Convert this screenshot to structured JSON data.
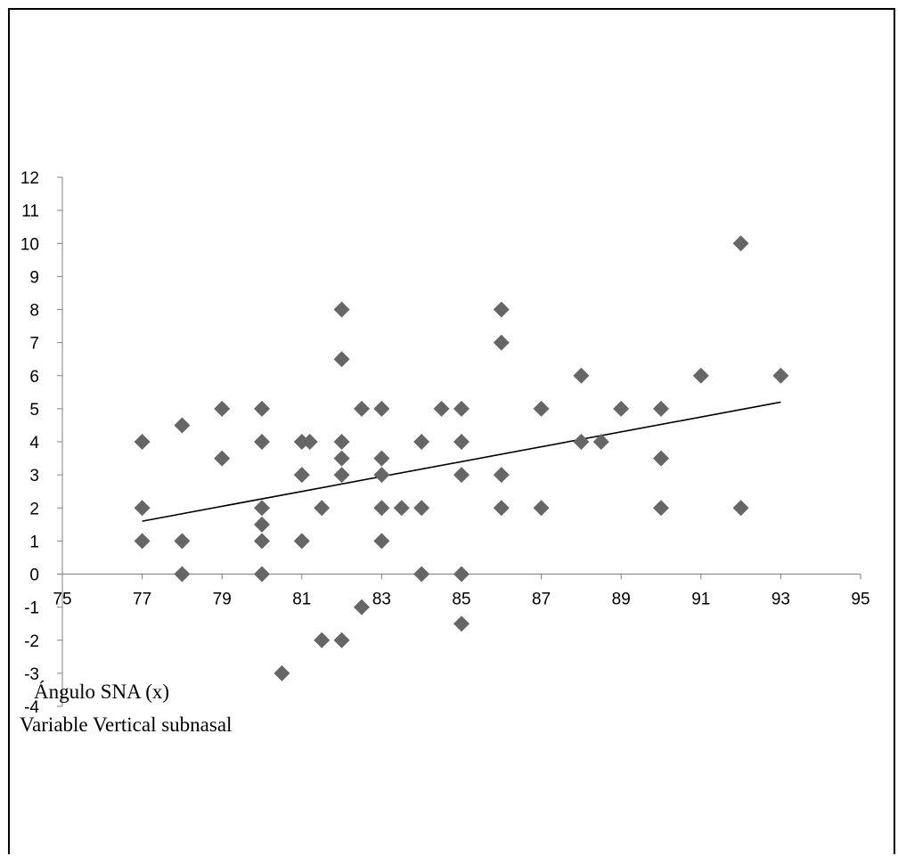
{
  "chart_data": {
    "type": "scatter",
    "x_label": "Ángulo SNA  (x)",
    "y_label": "Variable Vertical subnasal",
    "xlim": [
      75,
      95
    ],
    "ylim": [
      -4,
      12
    ],
    "x_ticks": [
      75,
      77,
      79,
      81,
      83,
      85,
      87,
      89,
      91,
      93,
      95
    ],
    "y_ticks": [
      -4,
      -3,
      -2,
      -1,
      0,
      1,
      2,
      3,
      4,
      5,
      6,
      7,
      8,
      9,
      10,
      11,
      12
    ],
    "grid": false,
    "marker": "diamond",
    "colors": {
      "marker": "#666666",
      "trendline": "#000000",
      "axis": "#808080"
    },
    "points": [
      {
        "x": 77,
        "y": 4
      },
      {
        "x": 77,
        "y": 2
      },
      {
        "x": 77,
        "y": 1
      },
      {
        "x": 78,
        "y": 4.5
      },
      {
        "x": 78,
        "y": 1
      },
      {
        "x": 78,
        "y": 0
      },
      {
        "x": 79,
        "y": 5
      },
      {
        "x": 79,
        "y": 3.5
      },
      {
        "x": 80,
        "y": 5
      },
      {
        "x": 80,
        "y": 4
      },
      {
        "x": 80,
        "y": 2
      },
      {
        "x": 80,
        "y": 1.5
      },
      {
        "x": 80,
        "y": 1
      },
      {
        "x": 80,
        "y": 0
      },
      {
        "x": 80.5,
        "y": -3
      },
      {
        "x": 81,
        "y": 4
      },
      {
        "x": 81,
        "y": 3
      },
      {
        "x": 81,
        "y": 1
      },
      {
        "x": 81.2,
        "y": 4
      },
      {
        "x": 81.5,
        "y": 2
      },
      {
        "x": 81.5,
        "y": -2
      },
      {
        "x": 82,
        "y": 8
      },
      {
        "x": 82,
        "y": 6.5
      },
      {
        "x": 82,
        "y": 4
      },
      {
        "x": 82,
        "y": 3.5
      },
      {
        "x": 82,
        "y": 3
      },
      {
        "x": 82,
        "y": -2
      },
      {
        "x": 82.5,
        "y": 5
      },
      {
        "x": 82.5,
        "y": -1
      },
      {
        "x": 83,
        "y": 5
      },
      {
        "x": 83,
        "y": 3.5
      },
      {
        "x": 83,
        "y": 3
      },
      {
        "x": 83,
        "y": 2
      },
      {
        "x": 83,
        "y": 1
      },
      {
        "x": 83.5,
        "y": 2
      },
      {
        "x": 84,
        "y": 4
      },
      {
        "x": 84,
        "y": 2
      },
      {
        "x": 84,
        "y": 0
      },
      {
        "x": 84.5,
        "y": 5
      },
      {
        "x": 85,
        "y": 5
      },
      {
        "x": 85,
        "y": 4
      },
      {
        "x": 85,
        "y": 3
      },
      {
        "x": 85,
        "y": 0
      },
      {
        "x": 85,
        "y": -1.5
      },
      {
        "x": 86,
        "y": 8
      },
      {
        "x": 86,
        "y": 7
      },
      {
        "x": 86,
        "y": 3
      },
      {
        "x": 86,
        "y": 2
      },
      {
        "x": 87,
        "y": 5
      },
      {
        "x": 87,
        "y": 2
      },
      {
        "x": 88,
        "y": 6
      },
      {
        "x": 88,
        "y": 4
      },
      {
        "x": 88.5,
        "y": 4
      },
      {
        "x": 89,
        "y": 5
      },
      {
        "x": 90,
        "y": 5
      },
      {
        "x": 90,
        "y": 3.5
      },
      {
        "x": 90,
        "y": 2
      },
      {
        "x": 91,
        "y": 6
      },
      {
        "x": 92,
        "y": 10
      },
      {
        "x": 92,
        "y": 2
      },
      {
        "x": 93,
        "y": 6
      }
    ],
    "trendline": {
      "x": [
        77,
        93
      ],
      "y": [
        1.6,
        5.2
      ]
    }
  }
}
